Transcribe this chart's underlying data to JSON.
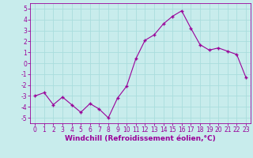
{
  "x": [
    0,
    1,
    2,
    3,
    4,
    5,
    6,
    7,
    8,
    9,
    10,
    11,
    12,
    13,
    14,
    15,
    16,
    17,
    18,
    19,
    20,
    21,
    22,
    23
  ],
  "y": [
    -3.0,
    -2.7,
    -3.8,
    -3.1,
    -3.8,
    -4.5,
    -3.7,
    -4.2,
    -5.0,
    -3.2,
    -2.1,
    0.4,
    2.1,
    2.6,
    3.6,
    4.3,
    4.8,
    3.2,
    1.7,
    1.2,
    1.4,
    1.1,
    0.8,
    -1.3
  ],
  "xlabel": "Windchill (Refroidissement éolien,°C)",
  "yticks": [
    -5,
    -4,
    -3,
    -2,
    -1,
    0,
    1,
    2,
    3,
    4,
    5
  ],
  "xticks": [
    0,
    1,
    2,
    3,
    4,
    5,
    6,
    7,
    8,
    9,
    10,
    11,
    12,
    13,
    14,
    15,
    16,
    17,
    18,
    19,
    20,
    21,
    22,
    23
  ],
  "ylim": [
    -5.5,
    5.5
  ],
  "xlim": [
    -0.5,
    23.5
  ],
  "line_color": "#990099",
  "marker": "+",
  "bg_color": "#c8ecec",
  "grid_color": "#aadddd",
  "tick_fontsize": 5.5,
  "xlabel_fontsize": 6.5
}
